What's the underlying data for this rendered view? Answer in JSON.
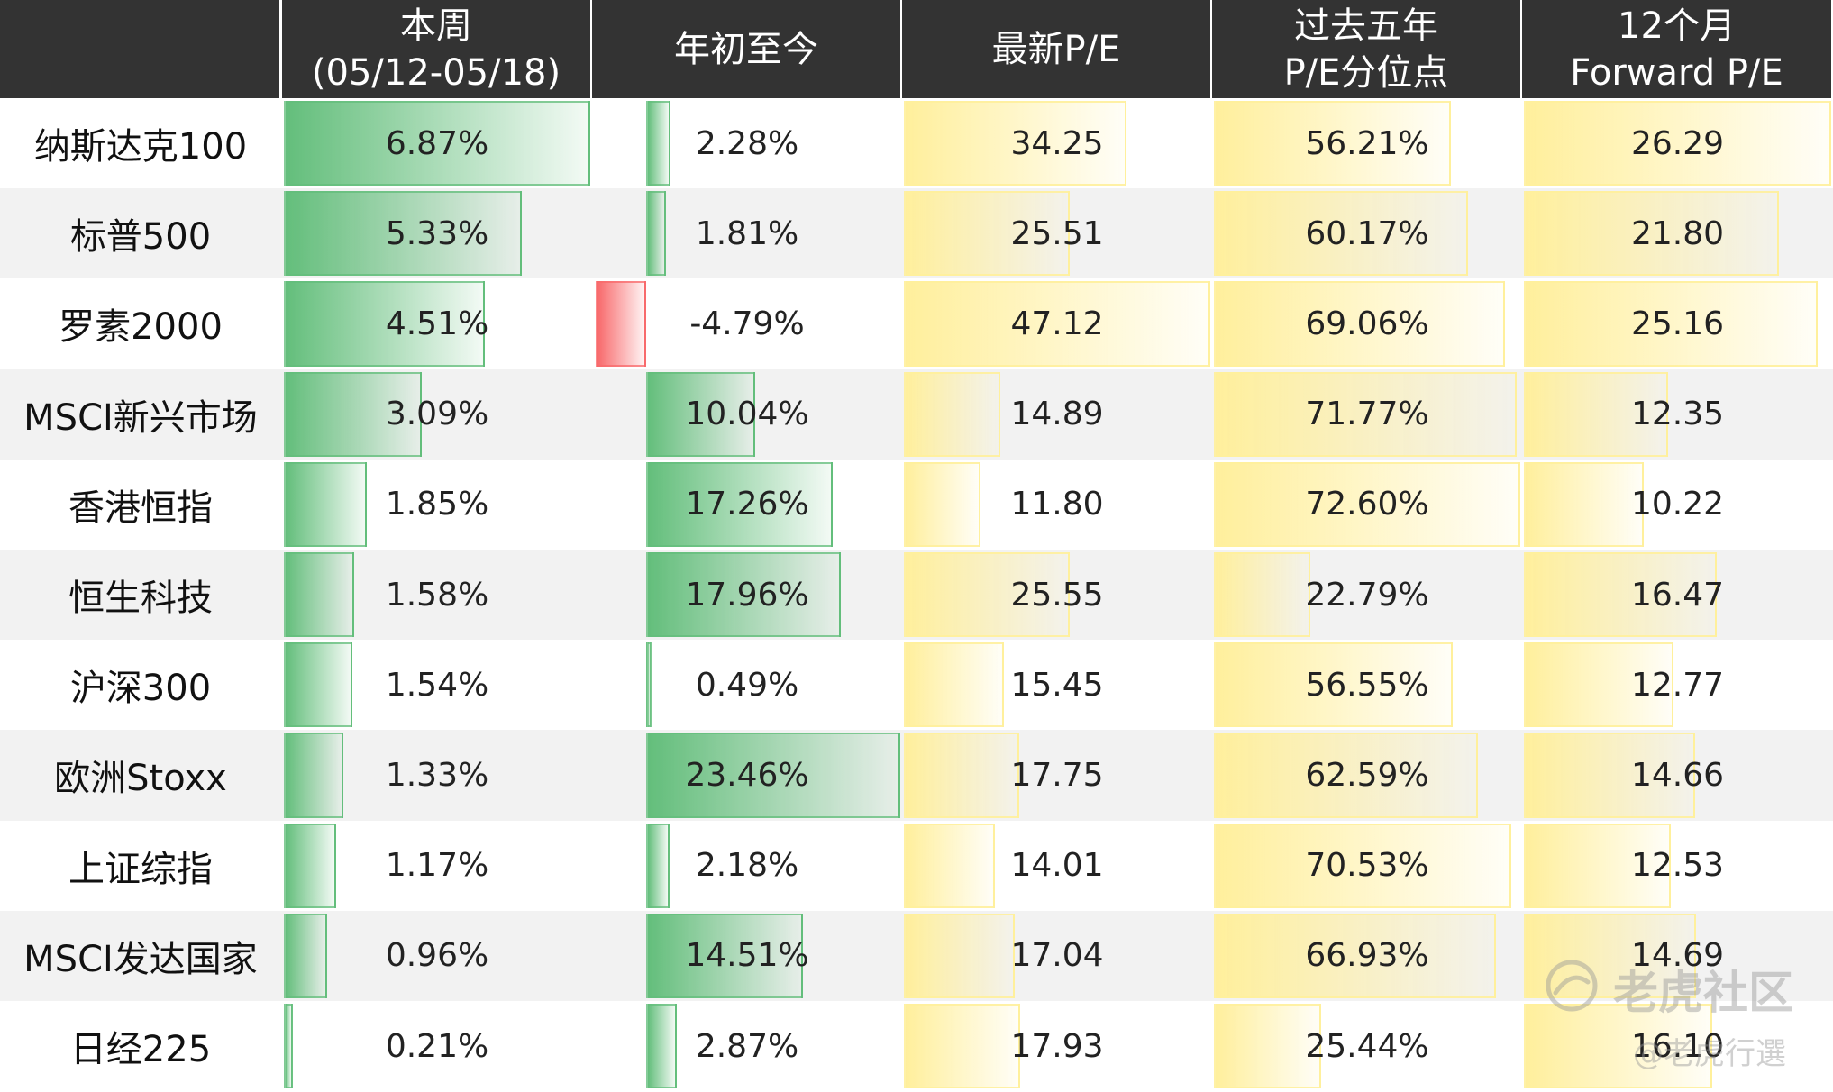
{
  "chart_data": {
    "type": "table",
    "columns": [
      {
        "key": "week",
        "label": [
          "本周",
          "(05/12-05/18)"
        ],
        "palette": "green",
        "max": 6.87,
        "unit": "%"
      },
      {
        "key": "ytd",
        "label": [
          "年初至今"
        ],
        "palette": "green",
        "max": 23.46,
        "unit": "%"
      },
      {
        "key": "pe",
        "label": [
          "最新P/E"
        ],
        "palette": "yellow",
        "max": 47.12,
        "unit": ""
      },
      {
        "key": "pct5y",
        "label": [
          "过去五年",
          "P/E分位点"
        ],
        "palette": "yellow",
        "max": 72.6,
        "unit": "%"
      },
      {
        "key": "fpe",
        "label": [
          "12个月",
          "Forward P/E"
        ],
        "palette": "yellow",
        "max": 26.29,
        "unit": ""
      }
    ],
    "rows": [
      {
        "name": "纳斯达克100",
        "values": [
          6.87,
          2.28,
          34.25,
          56.21,
          26.29
        ],
        "display": [
          "6.87%",
          "2.28%",
          "34.25",
          "56.21%",
          "26.29"
        ]
      },
      {
        "name": "标普500",
        "values": [
          5.33,
          1.81,
          25.51,
          60.17,
          21.8
        ],
        "display": [
          "5.33%",
          "1.81%",
          "25.51",
          "60.17%",
          "21.80"
        ]
      },
      {
        "name": "罗素2000",
        "values": [
          4.51,
          -4.79,
          47.12,
          69.06,
          25.16
        ],
        "display": [
          "4.51%",
          "-4.79%",
          "47.12",
          "69.06%",
          "25.16"
        ]
      },
      {
        "name": "MSCI新兴市场",
        "values": [
          3.09,
          10.04,
          14.89,
          71.77,
          12.35
        ],
        "display": [
          "3.09%",
          "10.04%",
          "14.89",
          "71.77%",
          "12.35"
        ]
      },
      {
        "name": "香港恒指",
        "values": [
          1.85,
          17.26,
          11.8,
          72.6,
          10.22
        ],
        "display": [
          "1.85%",
          "17.26%",
          "11.80",
          "72.60%",
          "10.22"
        ]
      },
      {
        "name": "恒生科技",
        "values": [
          1.58,
          17.96,
          25.55,
          22.79,
          16.47
        ],
        "display": [
          "1.58%",
          "17.96%",
          "25.55",
          "22.79%",
          "16.47"
        ]
      },
      {
        "name": "沪深300",
        "values": [
          1.54,
          0.49,
          15.45,
          56.55,
          12.77
        ],
        "display": [
          "1.54%",
          "0.49%",
          "15.45",
          "56.55%",
          "12.77"
        ]
      },
      {
        "name": "欧洲Stoxx",
        "values": [
          1.33,
          23.46,
          17.75,
          62.59,
          14.66
        ],
        "display": [
          "1.33%",
          "23.46%",
          "17.75",
          "62.59%",
          "14.66"
        ]
      },
      {
        "name": "上证综指",
        "values": [
          1.17,
          2.18,
          14.01,
          70.53,
          12.53
        ],
        "display": [
          "1.17%",
          "2.18%",
          "14.01",
          "70.53%",
          "12.53"
        ]
      },
      {
        "name": "MSCI发达国家",
        "values": [
          0.96,
          14.51,
          17.04,
          66.93,
          14.69
        ],
        "display": [
          "0.96%",
          "14.51%",
          "17.04",
          "66.93%",
          "14.69"
        ]
      },
      {
        "name": "日经225",
        "values": [
          0.21,
          2.87,
          17.93,
          25.44,
          16.1
        ],
        "display": [
          "0.21%",
          "2.87%",
          "17.93",
          "25.44%",
          "16.10"
        ]
      }
    ],
    "colors": {
      "header_bg": "#333333",
      "header_text": "#ffffff",
      "stripe": "#f2f2f2",
      "green_bar": "#63be7b",
      "red_bar": "#f8696b",
      "yellow_bar": "#ffef9c"
    }
  },
  "watermark": {
    "icon": "tiger-community-logo-icon",
    "text": "老虎社区",
    "sub": "@老虎行選"
  }
}
